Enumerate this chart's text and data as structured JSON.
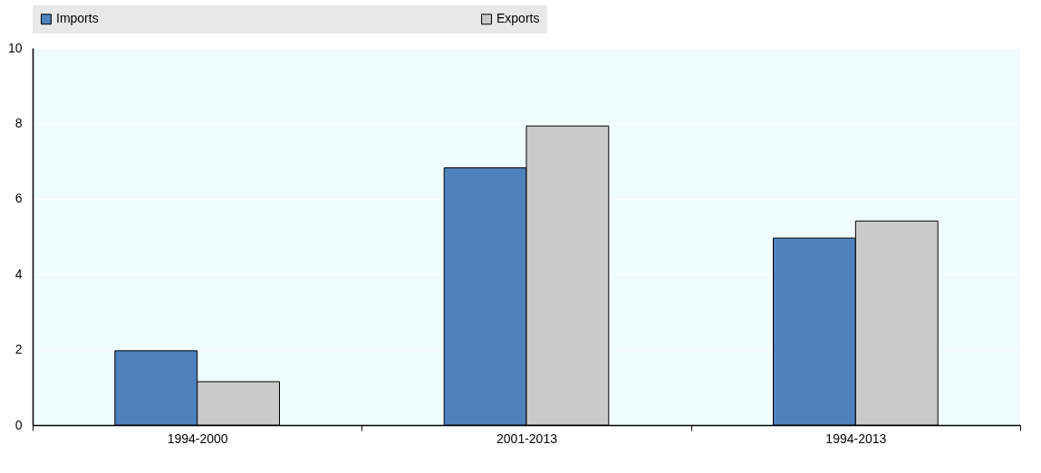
{
  "chart_data": {
    "type": "bar",
    "categories": [
      "1994-2000",
      "2001-2013",
      "1994-2013"
    ],
    "series": [
      {
        "name": "Imports",
        "color": "#4f81bd",
        "values": [
          1.97,
          6.82,
          4.96
        ]
      },
      {
        "name": "Exports",
        "color": "#cacaca",
        "values": [
          1.15,
          7.93,
          5.41
        ]
      }
    ],
    "ylim": [
      0,
      10
    ],
    "yticks": [
      0,
      2,
      4,
      6,
      8,
      10
    ],
    "grid": "y",
    "legend": "top"
  }
}
